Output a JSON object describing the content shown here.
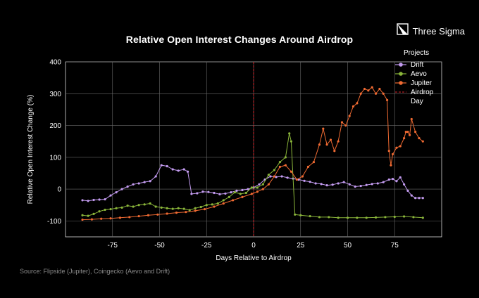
{
  "chart_data": {
    "type": "line",
    "title": "Relative Open Interest Changes Around Airdrop",
    "xlabel": "Days Relative to Airdrop",
    "ylabel": "Relative Open Interest Change (%)",
    "xlim": [
      -100,
      100
    ],
    "ylim": [
      -150,
      400
    ],
    "xticks": [
      -75,
      -50,
      -25,
      0,
      25,
      50,
      75
    ],
    "yticks": [
      -100,
      0,
      100,
      200,
      300,
      400
    ],
    "grid": true,
    "legend_title": "Projects",
    "legend_position": "top-right",
    "airdrop_day": 0,
    "airdrop_label": "Airdrop Day",
    "series": [
      {
        "name": "Drift",
        "color": "#c39bf0",
        "x": [
          -91,
          -88,
          -85,
          -82,
          -79,
          -76,
          -73,
          -70,
          -67,
          -64,
          -61,
          -58,
          -55,
          -52,
          -49,
          -46,
          -43,
          -40,
          -37,
          -35,
          -33,
          -30,
          -27,
          -24,
          -21,
          -18,
          -15,
          -12,
          -9,
          -6,
          -3,
          0,
          3,
          6,
          9,
          12,
          15,
          18,
          21,
          24,
          27,
          30,
          33,
          36,
          39,
          42,
          45,
          48,
          51,
          54,
          57,
          60,
          63,
          66,
          69,
          72,
          74,
          76,
          78,
          80,
          82,
          84,
          86,
          88,
          90
        ],
        "y": [
          -35,
          -37,
          -34,
          -33,
          -32,
          -20,
          -10,
          0,
          8,
          15,
          18,
          22,
          25,
          40,
          75,
          72,
          62,
          58,
          62,
          55,
          -15,
          -13,
          -8,
          -9,
          -12,
          -16,
          -14,
          -10,
          -5,
          -3,
          0,
          5,
          15,
          30,
          40,
          38,
          40,
          36,
          33,
          30,
          26,
          23,
          18,
          16,
          12,
          14,
          18,
          22,
          15,
          8,
          10,
          13,
          16,
          18,
          22,
          30,
          32,
          25,
          37,
          15,
          -5,
          -20,
          -28,
          -28,
          -28
        ]
      },
      {
        "name": "Aevo",
        "color": "#8ab53a",
        "x": [
          -91,
          -88,
          -85,
          -82,
          -79,
          -76,
          -73,
          -70,
          -67,
          -64,
          -61,
          -58,
          -55,
          -52,
          -49,
          -46,
          -43,
          -40,
          -37,
          -34,
          -31,
          -28,
          -25,
          -22,
          -19,
          -16,
          -13,
          -10,
          -7,
          -4,
          -1,
          2,
          5,
          8,
          11,
          14,
          17,
          19,
          20,
          22,
          25,
          30,
          35,
          40,
          45,
          50,
          55,
          60,
          65,
          70,
          75,
          80,
          85,
          90
        ],
        "y": [
          -82,
          -84,
          -78,
          -70,
          -65,
          -63,
          -60,
          -58,
          -52,
          -55,
          -50,
          -48,
          -45,
          -55,
          -58,
          -60,
          -62,
          -60,
          -62,
          -66,
          -60,
          -56,
          -50,
          -48,
          -45,
          -35,
          -25,
          -10,
          -15,
          -12,
          5,
          5,
          15,
          45,
          60,
          85,
          100,
          175,
          150,
          -80,
          -82,
          -85,
          -88,
          -88,
          -90,
          -90,
          -90,
          -90,
          -89,
          -88,
          -87,
          -86,
          -88,
          -90
        ]
      },
      {
        "name": "Jupiter",
        "color": "#ef6a32",
        "x": [
          -91,
          -86,
          -81,
          -76,
          -71,
          -66,
          -61,
          -56,
          -51,
          -46,
          -41,
          -36,
          -31,
          -26,
          -21,
          -16,
          -11,
          -6,
          -1,
          2,
          5,
          8,
          11,
          14,
          17,
          20,
          23,
          26,
          29,
          32,
          35,
          37,
          39,
          41,
          43,
          45,
          47,
          49,
          51,
          53,
          55,
          57,
          59,
          61,
          63,
          65,
          67,
          69,
          71,
          72,
          73,
          74,
          76,
          78,
          80,
          81,
          82,
          83,
          84,
          86,
          88,
          90
        ],
        "y": [
          -96,
          -95,
          -93,
          -92,
          -90,
          -88,
          -85,
          -82,
          -80,
          -77,
          -74,
          -72,
          -68,
          -63,
          -55,
          -45,
          -35,
          -25,
          -15,
          -8,
          0,
          15,
          40,
          70,
          75,
          55,
          30,
          40,
          70,
          85,
          140,
          190,
          140,
          155,
          120,
          150,
          210,
          200,
          230,
          260,
          270,
          300,
          315,
          310,
          320,
          300,
          315,
          300,
          280,
          120,
          75,
          110,
          130,
          135,
          160,
          180,
          180,
          170,
          220,
          180,
          160,
          150
        ]
      }
    ]
  },
  "brand": {
    "name": "Three Sigma",
    "icon": "three-sigma-logo-icon"
  },
  "footer": {
    "source": "Source: Flipside (Jupiter), Coingecko (Aevo and Drift)"
  }
}
